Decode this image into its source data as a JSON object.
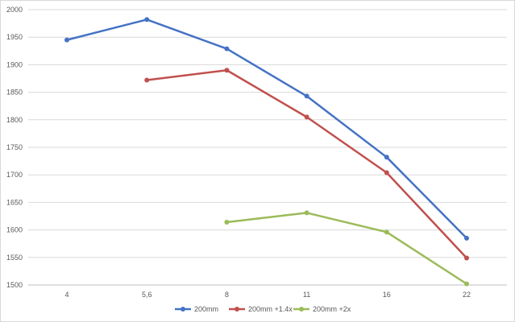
{
  "chart_data": {
    "type": "line",
    "title": "",
    "xlabel": "",
    "ylabel": "",
    "categories": [
      "4",
      "5,6",
      "8",
      "11",
      "16",
      "22"
    ],
    "ylim": [
      1500,
      2000
    ],
    "yticks": [
      1500,
      1550,
      1600,
      1650,
      1700,
      1750,
      1800,
      1850,
      1900,
      1950,
      2000
    ],
    "grid": "horizontal",
    "legend_position": "bottom",
    "series": [
      {
        "name": "200mm",
        "color": "#4472c4",
        "values": [
          1945,
          1982,
          1929,
          1843,
          1732,
          1585
        ]
      },
      {
        "name": "200mm +1.4x",
        "color": "#c0504d",
        "values": [
          null,
          1872,
          1890,
          1805,
          1704,
          1549
        ]
      },
      {
        "name": "200mm +2x",
        "color": "#9bbb59",
        "values": [
          null,
          null,
          1614,
          1631,
          1596,
          1502
        ]
      }
    ]
  }
}
